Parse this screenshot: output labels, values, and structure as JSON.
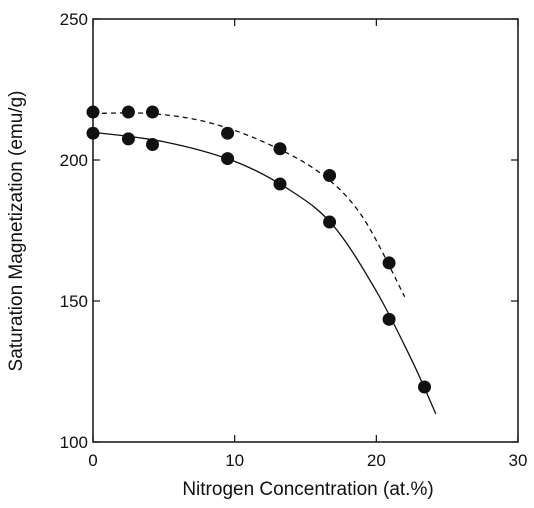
{
  "chart_data": {
    "type": "scatter",
    "xlabel": "Nitrogen Concentration (at.%)",
    "ylabel": "Saturation Magnetization (emu/g)",
    "xlim": [
      0,
      30
    ],
    "ylim": [
      100,
      250
    ],
    "x_ticks": [
      0,
      10,
      20,
      30
    ],
    "y_ticks": [
      100,
      150,
      200,
      250
    ],
    "x_tick_labels": [
      "0",
      "10",
      "20",
      "30"
    ],
    "y_tick_labels": [
      "100",
      "150",
      "200",
      "250"
    ],
    "grid": false,
    "series": [
      {
        "values": [
          {
            "x": 0.0,
            "y": 209.5
          },
          {
            "x": 2.5,
            "y": 207.5
          },
          {
            "x": 4.2,
            "y": 205.5
          },
          {
            "x": 9.5,
            "y": 200.5
          },
          {
            "x": 13.2,
            "y": 191.5
          },
          {
            "x": 16.7,
            "y": 178.0
          },
          {
            "x": 20.9,
            "y": 143.5
          },
          {
            "x": 23.4,
            "y": 119.5
          }
        ],
        "curve": [
          {
            "x": 0.0,
            "y": 209.8
          },
          {
            "x": 5.0,
            "y": 206.5
          },
          {
            "x": 10.0,
            "y": 199.5
          },
          {
            "x": 14.0,
            "y": 189.0
          },
          {
            "x": 17.0,
            "y": 176.5
          },
          {
            "x": 20.0,
            "y": 153.5
          },
          {
            "x": 22.5,
            "y": 129.0
          },
          {
            "x": 24.2,
            "y": 110.0
          }
        ],
        "line_style": "solid",
        "color": "#111111"
      },
      {
        "values": [
          {
            "x": 0.0,
            "y": 217.0
          },
          {
            "x": 2.5,
            "y": 217.0
          },
          {
            "x": 4.2,
            "y": 217.0
          },
          {
            "x": 9.5,
            "y": 209.5
          },
          {
            "x": 13.2,
            "y": 204.0
          },
          {
            "x": 16.7,
            "y": 194.5
          },
          {
            "x": 20.9,
            "y": 163.5
          }
        ],
        "curve": [
          {
            "x": 0.0,
            "y": 216.5
          },
          {
            "x": 4.0,
            "y": 216.5
          },
          {
            "x": 8.0,
            "y": 213.5
          },
          {
            "x": 12.0,
            "y": 206.5
          },
          {
            "x": 16.0,
            "y": 195.5
          },
          {
            "x": 19.0,
            "y": 180.0
          },
          {
            "x": 22.0,
            "y": 151.5
          }
        ],
        "line_style": "dashed",
        "color": "#111111"
      }
    ]
  }
}
